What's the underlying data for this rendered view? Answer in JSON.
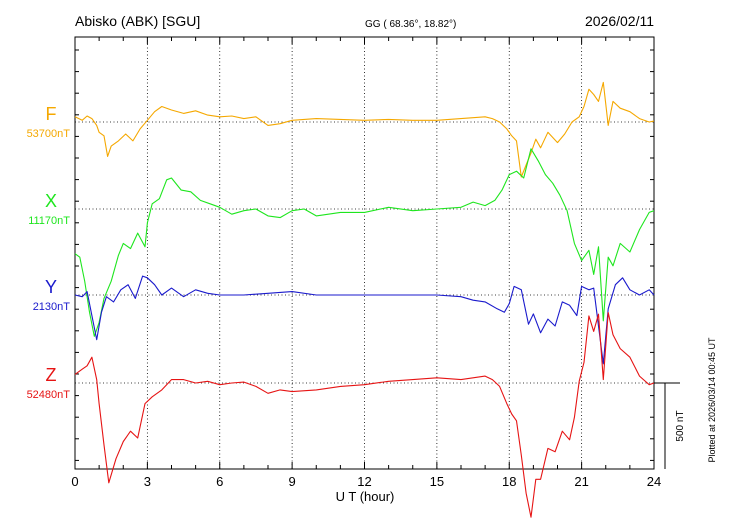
{
  "header": {
    "station": "Abisko (ABK)  [SGU]",
    "coords": "GG ( 68.36°,  18.82°)",
    "date": "2026/02/11"
  },
  "footer": {
    "plotted": "Plotted at 2026/03/14 00:45 UT",
    "scale_label": "500 nT"
  },
  "colors": {
    "F": "#f5a800",
    "X": "#1ee61e",
    "Y": "#1a1acc",
    "Z": "#e61414",
    "reference": "#000000"
  },
  "chart_data": {
    "type": "line",
    "title": "Abisko (ABK)  [SGU]",
    "xlabel": "U T (hour)",
    "x_ticks": [
      "0",
      "3",
      "6",
      "9",
      "12",
      "15",
      "18",
      "21",
      "24"
    ],
    "xlim": [
      0,
      24
    ],
    "y_units": "nT",
    "scale_bar_nT": 500,
    "grid": true,
    "series": [
      {
        "name": "F",
        "baseline": "53700nT",
        "x": [
          0,
          0.3,
          0.5,
          0.7,
          0.9,
          1.0,
          1.2,
          1.35,
          1.5,
          1.8,
          2.1,
          2.4,
          2.7,
          3.0,
          3.3,
          3.6,
          4.0,
          4.5,
          5.0,
          5.5,
          6.0,
          6.5,
          7.0,
          7.5,
          8.0,
          8.5,
          9.0,
          10.0,
          11.0,
          12.0,
          13.0,
          14.0,
          15.0,
          16.0,
          16.5,
          17.0,
          17.3,
          17.6,
          17.9,
          18.1,
          18.3,
          18.5,
          18.7,
          18.9,
          19.1,
          19.3,
          19.6,
          20.0,
          20.3,
          20.6,
          20.9,
          21.1,
          21.3,
          21.5,
          21.7,
          21.9,
          22.1,
          22.3,
          22.6,
          23.0,
          23.4,
          23.8,
          24.0
        ],
        "values": [
          30,
          10,
          35,
          20,
          -20,
          -60,
          -80,
          -200,
          -140,
          -110,
          -70,
          -110,
          -40,
          10,
          60,
          90,
          70,
          50,
          65,
          40,
          30,
          35,
          20,
          30,
          -20,
          -10,
          10,
          20,
          15,
          10,
          15,
          10,
          10,
          20,
          25,
          30,
          20,
          0,
          -40,
          -80,
          -110,
          -320,
          -250,
          -180,
          -100,
          -150,
          -60,
          -120,
          -70,
          0,
          30,
          90,
          190,
          160,
          120,
          230,
          -20,
          120,
          80,
          60,
          20,
          0,
          5
        ]
      },
      {
        "name": "X",
        "baseline": "11170nT",
        "x": [
          0,
          0.2,
          0.4,
          0.6,
          0.8,
          1.0,
          1.2,
          1.5,
          1.8,
          2.0,
          2.3,
          2.6,
          2.9,
          3.0,
          3.2,
          3.5,
          3.8,
          4.0,
          4.4,
          4.8,
          5.2,
          5.6,
          6.0,
          6.5,
          7.0,
          7.5,
          8.0,
          8.5,
          9.0,
          9.5,
          10.0,
          11.0,
          12.0,
          13.0,
          14.0,
          15.0,
          16.0,
          16.5,
          17.0,
          17.4,
          17.7,
          18.0,
          18.3,
          18.6,
          18.9,
          19.2,
          19.5,
          19.8,
          20.1,
          20.4,
          20.7,
          21.0,
          21.3,
          21.5,
          21.7,
          21.9,
          22.1,
          22.3,
          22.6,
          23.0,
          23.4,
          23.8,
          24.0
        ],
        "values": [
          -260,
          -280,
          -420,
          -600,
          -740,
          -660,
          -520,
          -420,
          -270,
          -200,
          -230,
          -140,
          -220,
          -80,
          30,
          60,
          170,
          180,
          110,
          100,
          50,
          30,
          10,
          -30,
          -10,
          0,
          -40,
          -50,
          -10,
          0,
          -40,
          -20,
          -20,
          10,
          -10,
          0,
          10,
          40,
          20,
          50,
          110,
          200,
          220,
          180,
          350,
          280,
          200,
          150,
          80,
          -10,
          -200,
          -300,
          -240,
          -380,
          -220,
          -650,
          -280,
          -330,
          -200,
          -250,
          -120,
          -20,
          -10
        ]
      },
      {
        "name": "Y",
        "baseline": "2130nT",
        "x": [
          0,
          0.3,
          0.5,
          0.7,
          0.9,
          1.1,
          1.3,
          1.6,
          1.9,
          2.2,
          2.5,
          2.8,
          3.0,
          3.3,
          3.6,
          4.0,
          4.5,
          5.0,
          5.5,
          6.0,
          7.0,
          8.0,
          9.0,
          10.0,
          11.0,
          12.0,
          13.0,
          14.0,
          15.0,
          16.0,
          16.5,
          17.0,
          17.5,
          17.8,
          18.0,
          18.2,
          18.5,
          18.8,
          19.0,
          19.3,
          19.6,
          19.9,
          20.2,
          20.5,
          20.8,
          21.0,
          21.3,
          21.5,
          21.7,
          21.9,
          22.1,
          22.4,
          22.7,
          23.0,
          23.4,
          23.8,
          24.0
        ],
        "values": [
          0,
          -10,
          20,
          -120,
          -260,
          -100,
          -10,
          -40,
          30,
          60,
          -20,
          110,
          100,
          60,
          0,
          40,
          -10,
          30,
          10,
          0,
          0,
          10,
          20,
          0,
          0,
          0,
          0,
          0,
          0,
          -10,
          -30,
          -40,
          -80,
          -100,
          -50,
          50,
          30,
          -170,
          -110,
          -220,
          -140,
          -180,
          -40,
          -60,
          -120,
          50,
          30,
          40,
          -180,
          -400,
          -80,
          60,
          100,
          30,
          0,
          30,
          0
        ]
      },
      {
        "name": "Z",
        "baseline": "52480nT",
        "x": [
          0,
          0.3,
          0.5,
          0.7,
          0.9,
          1.0,
          1.2,
          1.4,
          1.7,
          2.0,
          2.3,
          2.6,
          2.9,
          3.2,
          3.6,
          4.0,
          4.5,
          5.0,
          5.5,
          6.0,
          6.5,
          7.0,
          7.5,
          8.0,
          8.5,
          9.0,
          10.0,
          11.0,
          12.0,
          13.0,
          14.0,
          15.0,
          16.0,
          16.5,
          17.0,
          17.3,
          17.6,
          17.9,
          18.1,
          18.3,
          18.5,
          18.7,
          18.9,
          19.1,
          19.3,
          19.6,
          19.9,
          20.2,
          20.5,
          20.7,
          20.9,
          21.1,
          21.3,
          21.5,
          21.7,
          21.9,
          22.1,
          22.3,
          22.6,
          23.0,
          23.4,
          23.8,
          24.0
        ],
        "values": [
          50,
          80,
          100,
          150,
          20,
          -120,
          -360,
          -580,
          -440,
          -340,
          -280,
          -320,
          -120,
          -80,
          -40,
          20,
          20,
          0,
          10,
          -10,
          0,
          5,
          -20,
          -60,
          -40,
          -50,
          -40,
          -20,
          -10,
          10,
          20,
          30,
          20,
          30,
          40,
          20,
          -20,
          -120,
          -180,
          -220,
          -420,
          -640,
          -780,
          -560,
          -560,
          -380,
          -400,
          -280,
          -330,
          -200,
          10,
          120,
          390,
          300,
          400,
          20,
          410,
          280,
          200,
          150,
          40,
          -10,
          0
        ]
      }
    ]
  }
}
